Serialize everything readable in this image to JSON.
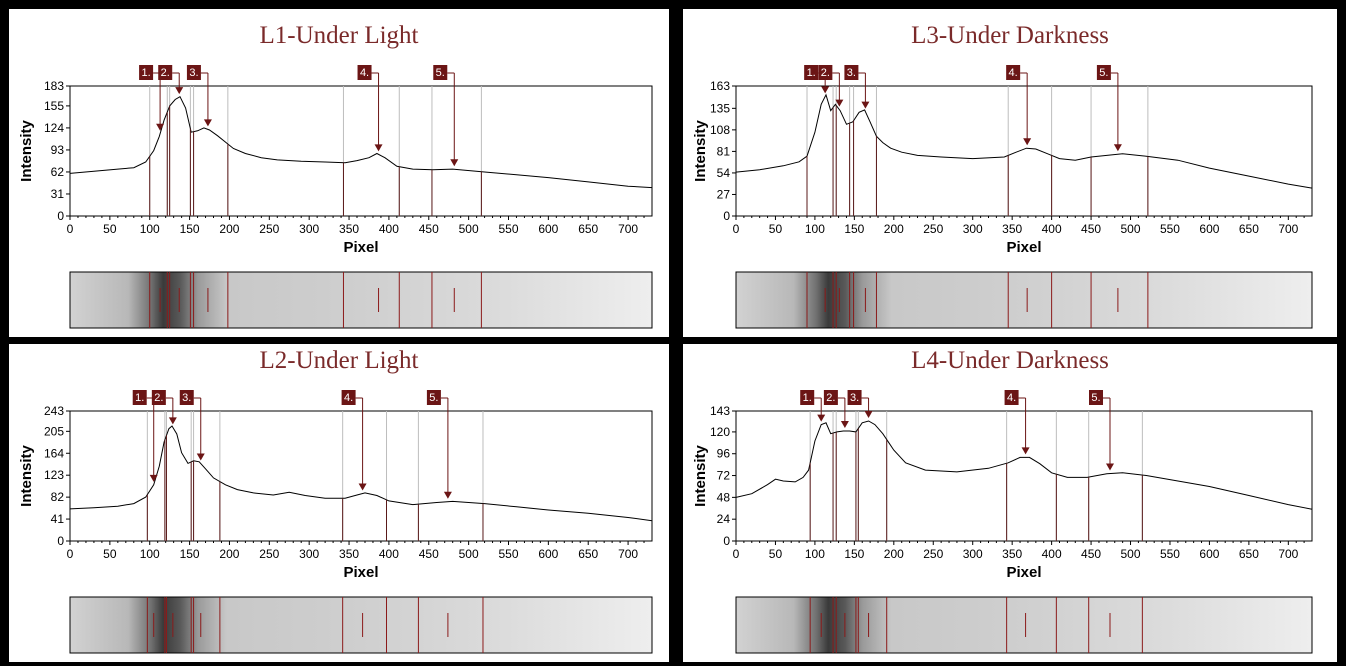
{
  "chart_data": [
    {
      "type": "line",
      "title": "L1-Under Light",
      "xlabel": "Pixel",
      "ylabel": "Intensity",
      "xlim": [
        0,
        730
      ],
      "ylim": [
        0,
        183
      ],
      "x_ticks": [
        0,
        50,
        100,
        150,
        200,
        250,
        300,
        350,
        400,
        450,
        500,
        550,
        600,
        650,
        700
      ],
      "y_ticks": [
        0,
        31,
        62,
        93,
        124,
        155,
        183
      ],
      "series": [
        {
          "x": [
            0,
            30,
            60,
            80,
            95,
            105,
            112,
            118,
            125,
            132,
            138,
            145,
            152,
            160,
            168,
            175,
            185,
            195,
            205,
            220,
            240,
            260,
            290,
            320,
            345,
            360,
            375,
            385,
            395,
            410,
            430,
            455,
            480,
            520,
            560,
            600,
            650,
            700,
            730
          ],
          "y": [
            60,
            63,
            66,
            68,
            76,
            92,
            112,
            135,
            155,
            164,
            168,
            152,
            118,
            120,
            124,
            121,
            113,
            104,
            95,
            88,
            82,
            79,
            77,
            76,
            75,
            78,
            82,
            88,
            82,
            70,
            66,
            65,
            66,
            62,
            58,
            54,
            48,
            42,
            40
          ]
        }
      ],
      "bands": [
        [
          100,
          122
        ],
        [
          125,
          151
        ],
        [
          155,
          198
        ],
        [
          343,
          413
        ],
        [
          454,
          516
        ]
      ],
      "peaks": [
        {
          "label": "1.",
          "x": 113
        },
        {
          "label": "2.",
          "x": 137
        },
        {
          "label": "3.",
          "x": 173
        },
        {
          "label": "4.",
          "x": 387
        },
        {
          "label": "5.",
          "x": 482
        }
      ]
    },
    {
      "type": "line",
      "title": "L3-Under Darkness",
      "xlabel": "Pixel",
      "ylabel": "Intensity",
      "xlim": [
        0,
        730
      ],
      "ylim": [
        0,
        163
      ],
      "x_ticks": [
        0,
        50,
        100,
        150,
        200,
        250,
        300,
        350,
        400,
        450,
        500,
        550,
        600,
        650,
        700
      ],
      "y_ticks": [
        0,
        27,
        54,
        81,
        108,
        135,
        163
      ],
      "series": [
        {
          "x": [
            0,
            30,
            60,
            80,
            90,
            100,
            108,
            114,
            120,
            126,
            132,
            140,
            148,
            156,
            163,
            170,
            178,
            186,
            196,
            210,
            230,
            260,
            300,
            340,
            355,
            368,
            380,
            395,
            410,
            430,
            450,
            470,
            490,
            520,
            560,
            600,
            650,
            700,
            730
          ],
          "y": [
            55,
            58,
            63,
            68,
            75,
            105,
            140,
            152,
            132,
            140,
            132,
            115,
            118,
            130,
            133,
            118,
            100,
            92,
            85,
            80,
            76,
            74,
            72,
            74,
            80,
            85,
            84,
            78,
            72,
            70,
            74,
            76,
            78,
            75,
            70,
            60,
            50,
            40,
            35
          ]
        }
      ],
      "bands": [
        [
          90,
          123
        ],
        [
          127,
          144
        ],
        [
          149,
          178
        ],
        [
          345,
          400
        ],
        [
          450,
          522
        ]
      ],
      "peaks": [
        {
          "label": "1.",
          "x": 113
        },
        {
          "label": "2.",
          "x": 131
        },
        {
          "label": "3.",
          "x": 164
        },
        {
          "label": "4.",
          "x": 369
        },
        {
          "label": "5.",
          "x": 484
        }
      ]
    },
    {
      "type": "line",
      "title": "L2-Under Light",
      "xlabel": "Pixel",
      "ylabel": "Intensity",
      "xlim": [
        0,
        730
      ],
      "ylim": [
        0,
        243
      ],
      "x_ticks": [
        0,
        50,
        100,
        150,
        200,
        250,
        300,
        350,
        400,
        450,
        500,
        550,
        600,
        650,
        700
      ],
      "y_ticks": [
        0,
        41,
        82,
        123,
        164,
        205,
        243
      ],
      "series": [
        {
          "x": [
            0,
            30,
            60,
            80,
            95,
            105,
            112,
            118,
            124,
            128,
            134,
            140,
            148,
            155,
            162,
            170,
            180,
            195,
            210,
            230,
            255,
            275,
            295,
            320,
            345,
            360,
            370,
            385,
            400,
            430,
            460,
            480,
            520,
            560,
            600,
            650,
            700,
            730
          ],
          "y": [
            60,
            62,
            65,
            70,
            82,
            105,
            140,
            185,
            210,
            215,
            200,
            165,
            145,
            150,
            148,
            135,
            118,
            105,
            96,
            90,
            86,
            91,
            85,
            80,
            80,
            86,
            90,
            85,
            75,
            68,
            72,
            74,
            70,
            64,
            58,
            52,
            44,
            38
          ]
        }
      ],
      "bands": [
        [
          97,
          119
        ],
        [
          121,
          152
        ],
        [
          155,
          188
        ],
        [
          342,
          397
        ],
        [
          437,
          518
        ]
      ],
      "peaks": [
        {
          "label": "1.",
          "x": 105
        },
        {
          "label": "2.",
          "x": 129
        },
        {
          "label": "3.",
          "x": 164
        },
        {
          "label": "4.",
          "x": 367
        },
        {
          "label": "5.",
          "x": 474
        }
      ]
    },
    {
      "type": "line",
      "title": "L4-Under Darkness",
      "xlabel": "Pixel",
      "ylabel": "Intensity",
      "xlim": [
        0,
        730
      ],
      "ylim": [
        0,
        143
      ],
      "x_ticks": [
        0,
        50,
        100,
        150,
        200,
        250,
        300,
        350,
        400,
        450,
        500,
        550,
        600,
        650,
        700
      ],
      "y_ticks": [
        0,
        24,
        48,
        72,
        96,
        120,
        143
      ],
      "series": [
        {
          "x": [
            0,
            20,
            40,
            50,
            60,
            75,
            85,
            92,
            100,
            108,
            114,
            120,
            128,
            136,
            144,
            152,
            160,
            168,
            176,
            186,
            200,
            215,
            240,
            280,
            320,
            345,
            360,
            372,
            385,
            400,
            420,
            445,
            470,
            490,
            520,
            560,
            600,
            650,
            700,
            730
          ],
          "y": [
            48,
            52,
            62,
            68,
            66,
            65,
            70,
            78,
            110,
            128,
            130,
            118,
            120,
            121,
            121,
            120,
            130,
            132,
            128,
            118,
            100,
            86,
            78,
            76,
            80,
            86,
            92,
            92,
            85,
            75,
            70,
            70,
            74,
            75,
            72,
            66,
            60,
            50,
            40,
            35
          ]
        }
      ],
      "bands": [
        [
          94,
          123
        ],
        [
          127,
          152
        ],
        [
          155,
          191
        ],
        [
          343,
          406
        ],
        [
          447,
          515
        ]
      ],
      "peaks": [
        {
          "label": "1.",
          "x": 108
        },
        {
          "label": "2.",
          "x": 138
        },
        {
          "label": "3.",
          "x": 168
        },
        {
          "label": "4.",
          "x": 367
        },
        {
          "label": "5.",
          "x": 474
        }
      ]
    }
  ]
}
